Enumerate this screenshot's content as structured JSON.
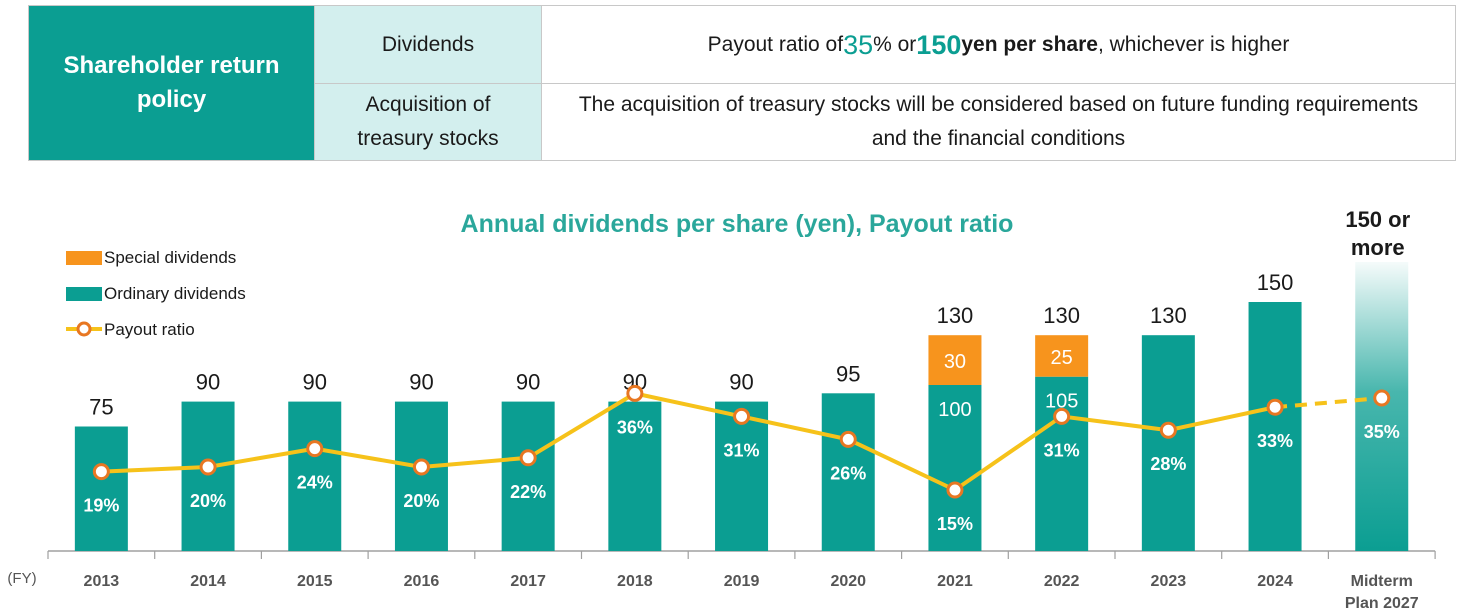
{
  "policy": {
    "title": "Shareholder return policy",
    "rows": [
      {
        "category": "Dividends",
        "description_parts": [
          "Payout ratio of ",
          "35",
          "% or ",
          "150",
          " yen per share",
          ", whichever is higher"
        ]
      },
      {
        "category": "Acquisition of treasury stocks",
        "description": "The acquisition of treasury stocks will be considered based on future funding requirements and the financial conditions"
      }
    ]
  },
  "colors": {
    "ordinary": "#0b9e92",
    "special": "#f7941d",
    "payout_line": "#f6c21a",
    "marker_stroke": "#e87722",
    "axis": "#a0a0a0"
  },
  "chart_data": {
    "type": "bar",
    "title": "Annual dividends per share (yen), Payout ratio",
    "xlabel": "(FY)",
    "categories": [
      "2013",
      "2014",
      "2015",
      "2016",
      "2017",
      "2018",
      "2019",
      "2020",
      "2021",
      "2022",
      "2023",
      "2024",
      "Midterm Plan 2027"
    ],
    "series": [
      {
        "name": "Ordinary dividends",
        "values": [
          75,
          90,
          90,
          90,
          90,
          90,
          90,
          95,
          100,
          105,
          130,
          150,
          150
        ]
      },
      {
        "name": "Special dividends",
        "values": [
          0,
          0,
          0,
          0,
          0,
          0,
          0,
          0,
          30,
          25,
          0,
          0,
          0
        ]
      },
      {
        "name": "Payout ratio",
        "values": [
          19,
          20,
          24,
          20,
          22,
          36,
          31,
          26,
          15,
          31,
          28,
          33,
          35
        ],
        "unit": "%"
      }
    ],
    "totals": [
      "75",
      "90",
      "90",
      "90",
      "90",
      "90",
      "90",
      "95",
      "130",
      "130",
      "130",
      "150",
      "150 or more"
    ],
    "special_labels": [
      "",
      "",
      "",
      "",
      "",
      "",
      "",
      "",
      "30",
      "25",
      "",
      "",
      ""
    ],
    "ordinary_labels": [
      "",
      "",
      "",
      "",
      "",
      "",
      "",
      "",
      "100",
      "105",
      "",
      "",
      ""
    ],
    "payout_labels": [
      "19%",
      "20%",
      "24%",
      "20%",
      "22%",
      "36%",
      "31%",
      "26%",
      "15%",
      "31%",
      "28%",
      "33%",
      "35%"
    ],
    "legend": [
      "Special dividends",
      "Ordinary dividends",
      "Payout ratio"
    ],
    "legend_position": "top-left",
    "last_category_is_target": true
  }
}
